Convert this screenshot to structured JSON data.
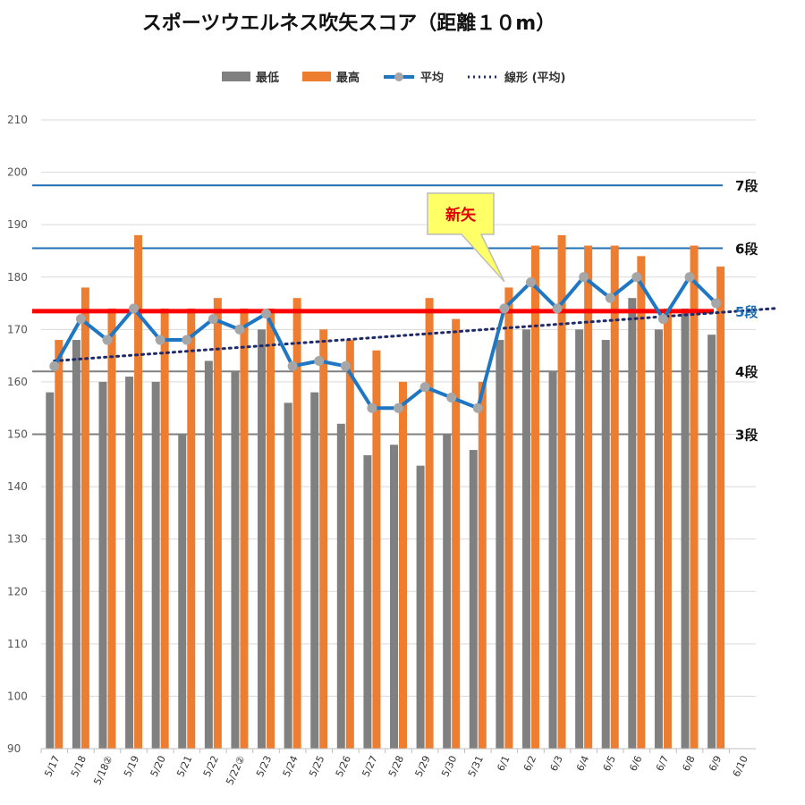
{
  "chart_data": {
    "type": "bar",
    "title": "スポーツウエルネス吹矢スコア（距離１０m）",
    "xlabel": "",
    "ylabel": "",
    "ylim": [
      90,
      210
    ],
    "yticks": [
      90,
      100,
      110,
      120,
      130,
      140,
      150,
      160,
      170,
      180,
      190,
      200,
      210
    ],
    "grid": true,
    "legend_position": "top",
    "categories": [
      "5/17",
      "5/18",
      "5/18②",
      "5/19",
      "5/20",
      "5/21",
      "5/22",
      "5/22②",
      "5/23",
      "5/24",
      "5/25",
      "5/26",
      "5/27",
      "5/28",
      "5/29",
      "5/30",
      "5/31",
      "6/1",
      "6/2",
      "6/3",
      "6/4",
      "6/5",
      "6/6",
      "6/7",
      "6/8",
      "6/9",
      "6/10"
    ],
    "series": [
      {
        "name": "最低",
        "kind": "bar",
        "color": "#808080",
        "values": [
          158,
          168,
          160,
          161,
          160,
          150,
          164,
          162,
          170,
          156,
          158,
          152,
          146,
          148,
          144,
          150,
          147,
          168,
          170,
          162,
          170,
          168,
          176,
          170,
          174,
          169,
          null
        ]
      },
      {
        "name": "最高",
        "kind": "bar",
        "color": "#ed7d31",
        "values": [
          168,
          178,
          174,
          188,
          174,
          174,
          176,
          174,
          174,
          176,
          170,
          168,
          166,
          160,
          176,
          172,
          160,
          178,
          186,
          188,
          186,
          186,
          184,
          174,
          186,
          182,
          null
        ]
      },
      {
        "name": "平均",
        "kind": "line",
        "color": "#1f77c4",
        "marker_color": "#a6a6a6",
        "values": [
          163,
          172,
          168,
          174,
          168,
          168,
          172,
          170,
          173,
          163,
          164,
          163,
          155,
          155,
          159,
          157,
          155,
          174,
          179,
          174,
          180,
          176,
          180,
          172,
          180,
          175,
          null
        ]
      },
      {
        "name": "線形 (平均)",
        "kind": "trendline",
        "color": "#1f2a6b",
        "from": 164,
        "to": 174
      }
    ],
    "reference_lines": [
      {
        "value": 197.5,
        "label": "7段",
        "color": "#1f6fb5",
        "label_color": "#111111"
      },
      {
        "value": 185.5,
        "label": "6段",
        "color": "#1f6fb5",
        "label_color": "#111111"
      },
      {
        "value": 173.5,
        "label": "5段",
        "color": "#ff0000",
        "label_color": "#1f6fb5"
      },
      {
        "value": 162,
        "label": "4段",
        "color": "#808080",
        "label_color": "#111111"
      },
      {
        "value": 150,
        "label": "3段",
        "color": "#808080",
        "label_color": "#111111"
      }
    ],
    "annotations": [
      {
        "text": "新矢",
        "category": "6/1",
        "style": "callout",
        "fill": "#ffff66",
        "text_color": "#e00000"
      }
    ]
  }
}
